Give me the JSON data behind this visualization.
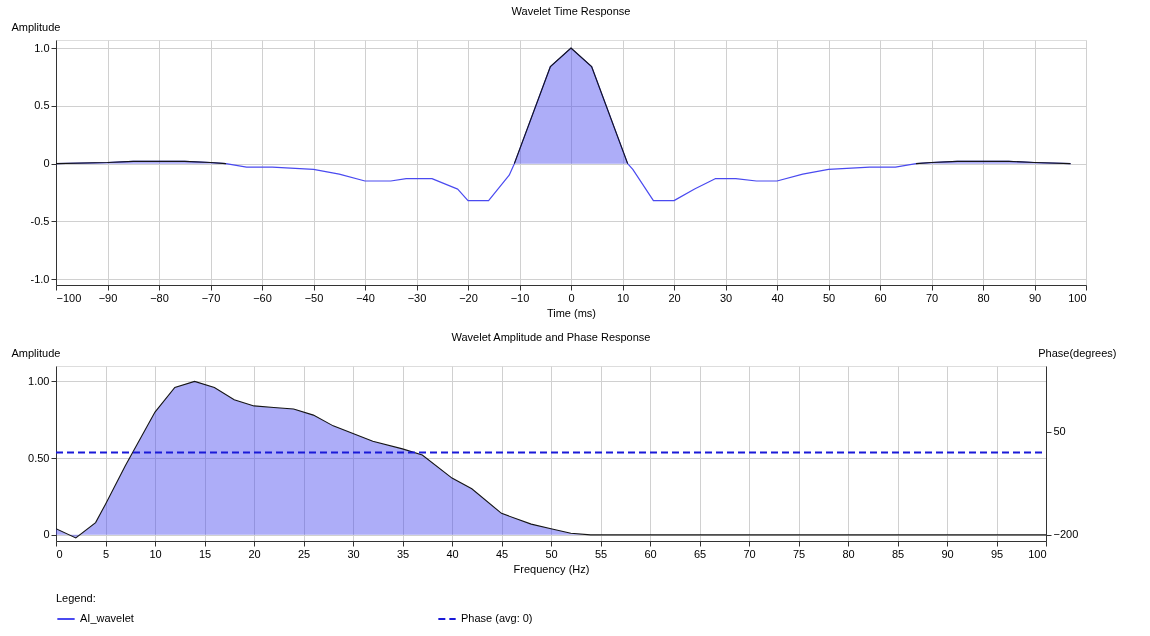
{
  "chart_data": [
    {
      "type": "line",
      "title": "Wavelet Time Response",
      "xlabel": "Time (ms)",
      "ylabel": "Amplitude",
      "x": [
        -100,
        -90,
        -85,
        -75,
        -70,
        -67,
        -63,
        -58,
        -50,
        -45,
        -40,
        -35,
        -32,
        -27,
        -22,
        -20,
        -16,
        -12,
        -11,
        -4,
        0,
        4,
        11,
        12,
        16,
        20,
        24,
        28,
        32,
        36,
        40,
        45,
        50,
        58,
        63,
        67,
        70,
        75,
        85,
        90,
        97
      ],
      "series": [
        {
          "color": "#4a4af0",
          "values": [
            0,
            0.01,
            0.02,
            0.02,
            0.01,
            0,
            -0.03,
            -0.03,
            -0.05,
            -0.09,
            -0.15,
            -0.15,
            -0.13,
            -0.13,
            -0.22,
            -0.32,
            -0.32,
            -0.1,
            0,
            0.84,
            1.0,
            0.84,
            0,
            -0.05,
            -0.32,
            -0.32,
            -0.22,
            -0.13,
            -0.13,
            -0.15,
            -0.15,
            -0.09,
            -0.05,
            -0.03,
            -0.03,
            0,
            0.01,
            0.02,
            0.02,
            0.01,
            0
          ]
        },
        {
          "type": "area",
          "color": "#4a4af0",
          "values": [
            0,
            0.01,
            0.02,
            0.02,
            0.01,
            0,
            null,
            null,
            null,
            null,
            null,
            null,
            null,
            null,
            null,
            null,
            null,
            null,
            0,
            0.84,
            1.0,
            0.84,
            0,
            null,
            null,
            null,
            null,
            null,
            null,
            null,
            null,
            null,
            null,
            null,
            null,
            0,
            0.01,
            0.02,
            0.02,
            0.01,
            0
          ]
        }
      ],
      "xlim": [
        -100,
        100
      ],
      "xticks": [
        -100,
        -90,
        -80,
        -70,
        -60,
        -50,
        -40,
        -30,
        -20,
        -10,
        0,
        10,
        20,
        30,
        40,
        50,
        60,
        70,
        80,
        90,
        100
      ],
      "ylim": [
        -1.05,
        1.07
      ],
      "yticks": [
        {
          "value": -1,
          "label": "-1.0"
        },
        {
          "value": -0.5,
          "label": "-0.5"
        },
        0,
        {
          "value": 0.5,
          "label": "0.5"
        },
        {
          "value": 1,
          "label": "1.0"
        }
      ],
      "grid": true
    },
    {
      "type": "area",
      "title": "Wavelet Amplitude and Phase Response",
      "xlabel": "Frequency (Hz)",
      "ylabel": "Amplitude",
      "y2label": "Phase(degrees)",
      "legend_title": "Legend:",
      "legend": "bottom",
      "x": [
        0,
        2,
        4,
        5,
        7,
        10,
        12,
        14,
        16,
        18,
        20,
        22,
        24,
        26,
        28,
        30,
        32,
        35,
        37,
        40,
        42,
        45,
        48,
        50,
        52,
        54,
        100
      ],
      "series": [
        {
          "name": "AI_wavelet",
          "color": "#4a4af0",
          "values": [
            0.04,
            -0.02,
            0.08,
            0.2,
            0.45,
            0.8,
            0.96,
            1.0,
            0.96,
            0.88,
            0.84,
            0.83,
            0.82,
            0.78,
            0.71,
            0.66,
            0.61,
            0.56,
            0.52,
            0.37,
            0.3,
            0.14,
            0.07,
            0.04,
            0.01,
            0,
            0
          ]
        },
        {
          "name": "Phase (avg: 0)",
          "type": "line",
          "axis": "y2",
          "line_style": "dashed",
          "color": "#1a1ad8",
          "x": [
            0,
            100
          ],
          "values": [
            0,
            0
          ]
        }
      ],
      "xlim": [
        0,
        100
      ],
      "xticks": [
        0,
        5,
        10,
        15,
        20,
        25,
        30,
        35,
        40,
        45,
        50,
        55,
        60,
        65,
        70,
        75,
        80,
        85,
        90,
        95,
        100
      ],
      "ylim": [
        -0.04,
        1.1
      ],
      "yticks": [
        0,
        {
          "value": 0.5,
          "label": "0.50"
        },
        {
          "value": 1,
          "label": "1.00"
        }
      ],
      "y2lim": [
        -215,
        210
      ],
      "y2ticks": [
        -200,
        50
      ],
      "grid": true
    }
  ]
}
